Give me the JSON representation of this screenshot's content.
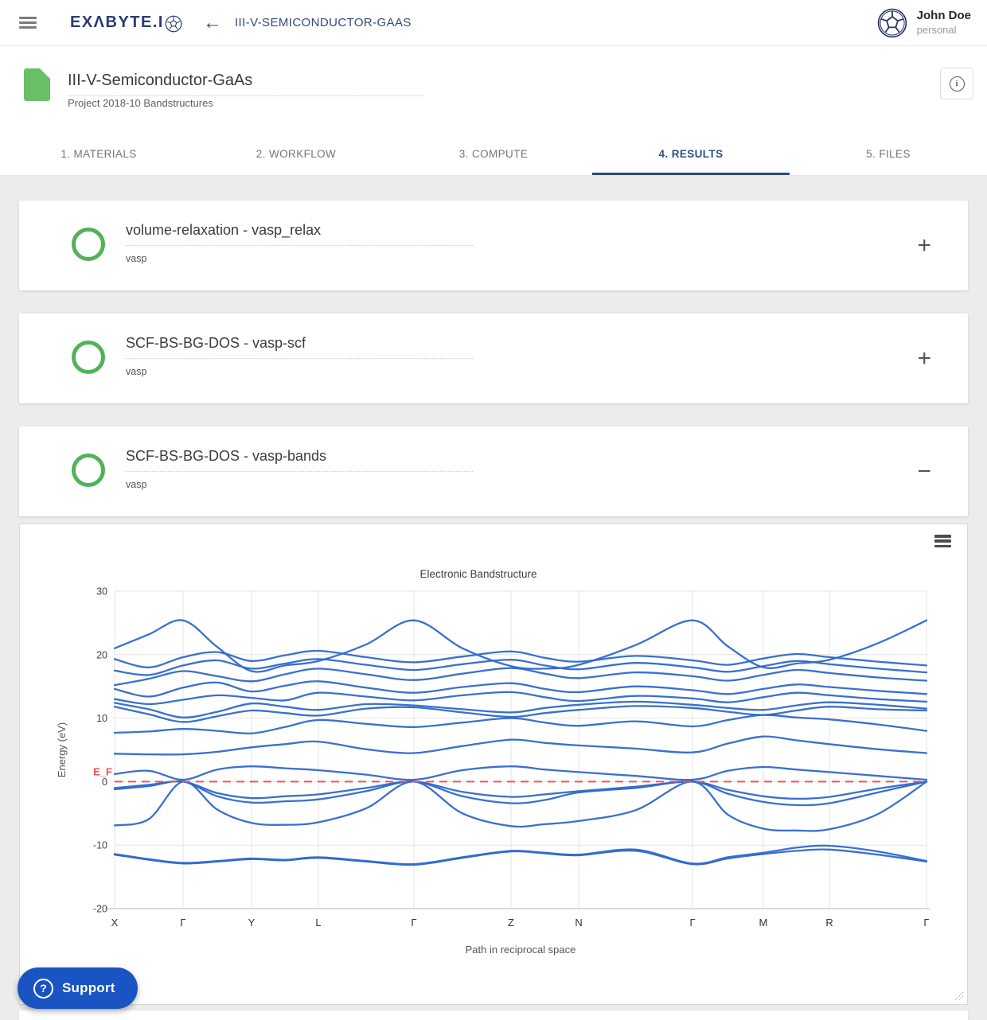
{
  "navbar": {
    "logo_text": "EXΛBYTE.I",
    "back_icon": "←",
    "breadcrumb": "III-V-SEMICONDUCTOR-GAAS",
    "user": {
      "name": "John Doe",
      "account": "personal"
    }
  },
  "header": {
    "title": "III-V-Semiconductor-GaAs",
    "subtitle": "Project 2018-10 Bandstructures",
    "info_icon": "i"
  },
  "tabs": [
    {
      "label": "1. MATERIALS",
      "active": false
    },
    {
      "label": "2. WORKFLOW",
      "active": false
    },
    {
      "label": "3. COMPUTE",
      "active": false
    },
    {
      "label": "4. RESULTS",
      "active": true
    },
    {
      "label": "5. FILES",
      "active": false
    }
  ],
  "cards": [
    {
      "title": "volume-relaxation - vasp_relax",
      "subtitle": "vasp",
      "toggle": "+"
    },
    {
      "title": "SCF-BS-BG-DOS - vasp-scf",
      "subtitle": "vasp",
      "toggle": "+"
    },
    {
      "title": "SCF-BS-BG-DOS - vasp-bands",
      "subtitle": "vasp",
      "toggle": "−"
    }
  ],
  "support": {
    "label": "Support",
    "icon": "?"
  },
  "colors": {
    "brand_navy": "#2b3c6e",
    "active_tab": "#2d5086",
    "status_green": "#53b258",
    "file_green": "#6abf69",
    "band_blue": "#2e68cd",
    "fermi_red": "#ef5350",
    "support_blue": "#1a53c2"
  },
  "chart_data": {
    "type": "line",
    "title": "Electronic Bandstructure",
    "xlabel": "Path in reciprocal space",
    "ylabel": "Energy (eV)",
    "ylim": [
      -20,
      30
    ],
    "yticks": [
      30,
      20,
      10,
      0,
      -10,
      -20
    ],
    "grid": true,
    "x_tick_labels": [
      "X",
      "Γ",
      "Y",
      "L",
      "Γ",
      "Z",
      "N",
      "Γ",
      "M",
      "R",
      "Γ"
    ],
    "k_positions": [
      0,
      0.0843,
      0.1686,
      0.251,
      0.3686,
      0.4882,
      0.5716,
      0.7118,
      0.799,
      0.8804,
      1.0
    ],
    "fermi_level": {
      "label": "E_F",
      "value": 0,
      "color": "#ef5350",
      "style": "dashed"
    },
    "line_color": "#2e68cd",
    "series": [
      {
        "name": "band-01",
        "values": [
          -11.5,
          -12.3,
          -12.9,
          -12.6,
          -12.2,
          -12.4,
          -12.0,
          -12.6,
          -13.1,
          -12.0,
          -11.0,
          -11.3,
          -11.6,
          -10.9,
          -13.0,
          -12.1,
          -11.4,
          -10.9,
          -10.7,
          -11.5,
          -12.6
        ]
      },
      {
        "name": "band-02",
        "values": [
          -11.4,
          -12.2,
          -12.8,
          -12.5,
          -12.1,
          -12.3,
          -11.9,
          -12.5,
          -13.0,
          -11.9,
          -10.9,
          -11.2,
          -11.5,
          -10.7,
          -12.9,
          -11.9,
          -11.2,
          -10.4,
          -10.1,
          -11.0,
          -12.5
        ]
      },
      {
        "name": "band-03",
        "values": [
          -1.0,
          -0.5,
          0.0,
          -1.8,
          -2.6,
          -2.3,
          -2.0,
          -1.0,
          0.0,
          -1.6,
          -2.4,
          -2.0,
          -1.5,
          -0.8,
          0.0,
          -1.3,
          -2.3,
          -2.7,
          -2.4,
          -1.1,
          0.0
        ]
      },
      {
        "name": "band-04",
        "values": [
          -1.2,
          -0.7,
          0.0,
          -2.3,
          -3.3,
          -3.1,
          -2.8,
          -1.5,
          0.0,
          -2.3,
          -3.4,
          -2.9,
          -1.7,
          -1.0,
          0.0,
          -1.9,
          -3.2,
          -3.7,
          -3.4,
          -1.7,
          0.0
        ]
      },
      {
        "name": "band-05",
        "values": [
          -6.9,
          -5.9,
          0.0,
          -4.4,
          -6.5,
          -6.8,
          -6.4,
          -4.2,
          0.0,
          -5.0,
          -7.0,
          -6.7,
          -6.2,
          -4.5,
          0.0,
          -5.2,
          -7.4,
          -7.7,
          -7.5,
          -5.1,
          0.0
        ]
      },
      {
        "name": "band-06",
        "values": [
          1.2,
          1.7,
          0.3,
          1.9,
          2.4,
          2.1,
          1.8,
          1.1,
          0.3,
          1.8,
          2.4,
          1.9,
          1.5,
          0.9,
          0.3,
          1.7,
          2.3,
          1.9,
          1.5,
          0.9,
          0.3
        ]
      },
      {
        "name": "band-07",
        "values": [
          4.4,
          4.3,
          4.3,
          4.7,
          5.4,
          5.9,
          6.3,
          5.1,
          4.5,
          5.6,
          6.6,
          6.1,
          5.7,
          5.2,
          4.6,
          6.0,
          7.1,
          6.5,
          5.9,
          5.1,
          4.5
        ]
      },
      {
        "name": "band-08",
        "values": [
          7.7,
          7.9,
          8.3,
          8.0,
          7.6,
          8.6,
          9.7,
          9.1,
          8.6,
          9.3,
          10.0,
          9.3,
          8.8,
          9.5,
          8.7,
          9.7,
          10.5,
          10.1,
          9.8,
          9.0,
          8.0
        ]
      },
      {
        "name": "band-09",
        "values": [
          11.8,
          10.6,
          9.4,
          10.3,
          11.2,
          10.8,
          10.4,
          11.5,
          11.7,
          10.9,
          10.2,
          10.8,
          11.3,
          11.9,
          11.6,
          11.0,
          10.5,
          11.2,
          11.8,
          11.4,
          11.2
        ]
      },
      {
        "name": "band-10",
        "values": [
          12.4,
          11.4,
          10.1,
          11.0,
          12.3,
          11.8,
          11.3,
          12.2,
          12.0,
          11.4,
          10.9,
          11.6,
          12.1,
          12.6,
          12.1,
          11.6,
          11.3,
          12.0,
          12.5,
          12.1,
          11.5
        ]
      },
      {
        "name": "band-11",
        "values": [
          13.0,
          12.2,
          12.9,
          13.6,
          13.2,
          12.8,
          14.0,
          13.4,
          12.8,
          13.6,
          14.1,
          13.3,
          12.7,
          13.5,
          13.1,
          12.5,
          13.3,
          14.0,
          13.6,
          13.0,
          12.6
        ]
      },
      {
        "name": "band-12",
        "values": [
          14.6,
          13.4,
          14.8,
          15.6,
          14.2,
          15.1,
          15.8,
          14.8,
          14.0,
          14.9,
          15.5,
          14.6,
          14.1,
          15.0,
          14.4,
          13.8,
          14.6,
          15.3,
          14.9,
          14.3,
          13.8
        ]
      },
      {
        "name": "band-13",
        "values": [
          15.2,
          16.2,
          17.4,
          16.6,
          15.8,
          16.9,
          17.8,
          16.9,
          16.0,
          17.0,
          17.9,
          17.0,
          16.3,
          17.2,
          16.6,
          15.9,
          16.8,
          17.6,
          17.1,
          16.4,
          15.9
        ]
      },
      {
        "name": "band-14",
        "values": [
          17.5,
          16.8,
          18.3,
          19.1,
          17.8,
          18.6,
          19.3,
          18.4,
          17.6,
          18.5,
          19.2,
          18.3,
          17.7,
          18.7,
          18.0,
          17.3,
          18.2,
          19.0,
          18.5,
          17.8,
          17.2
        ]
      },
      {
        "name": "band-15",
        "values": [
          19.3,
          18.0,
          19.6,
          20.4,
          19.0,
          19.9,
          20.6,
          19.6,
          18.8,
          19.7,
          20.5,
          19.5,
          18.9,
          19.8,
          19.1,
          18.4,
          19.4,
          20.1,
          19.6,
          18.9,
          18.3
        ]
      },
      {
        "name": "band-16",
        "values": [
          21.0,
          23.2,
          25.4,
          21.2,
          17.4,
          18.3,
          19.0,
          21.6,
          25.4,
          21.0,
          18.2,
          17.8,
          18.4,
          21.5,
          25.4,
          21.3,
          18.0,
          18.6,
          19.2,
          21.8,
          25.4
        ]
      }
    ]
  }
}
